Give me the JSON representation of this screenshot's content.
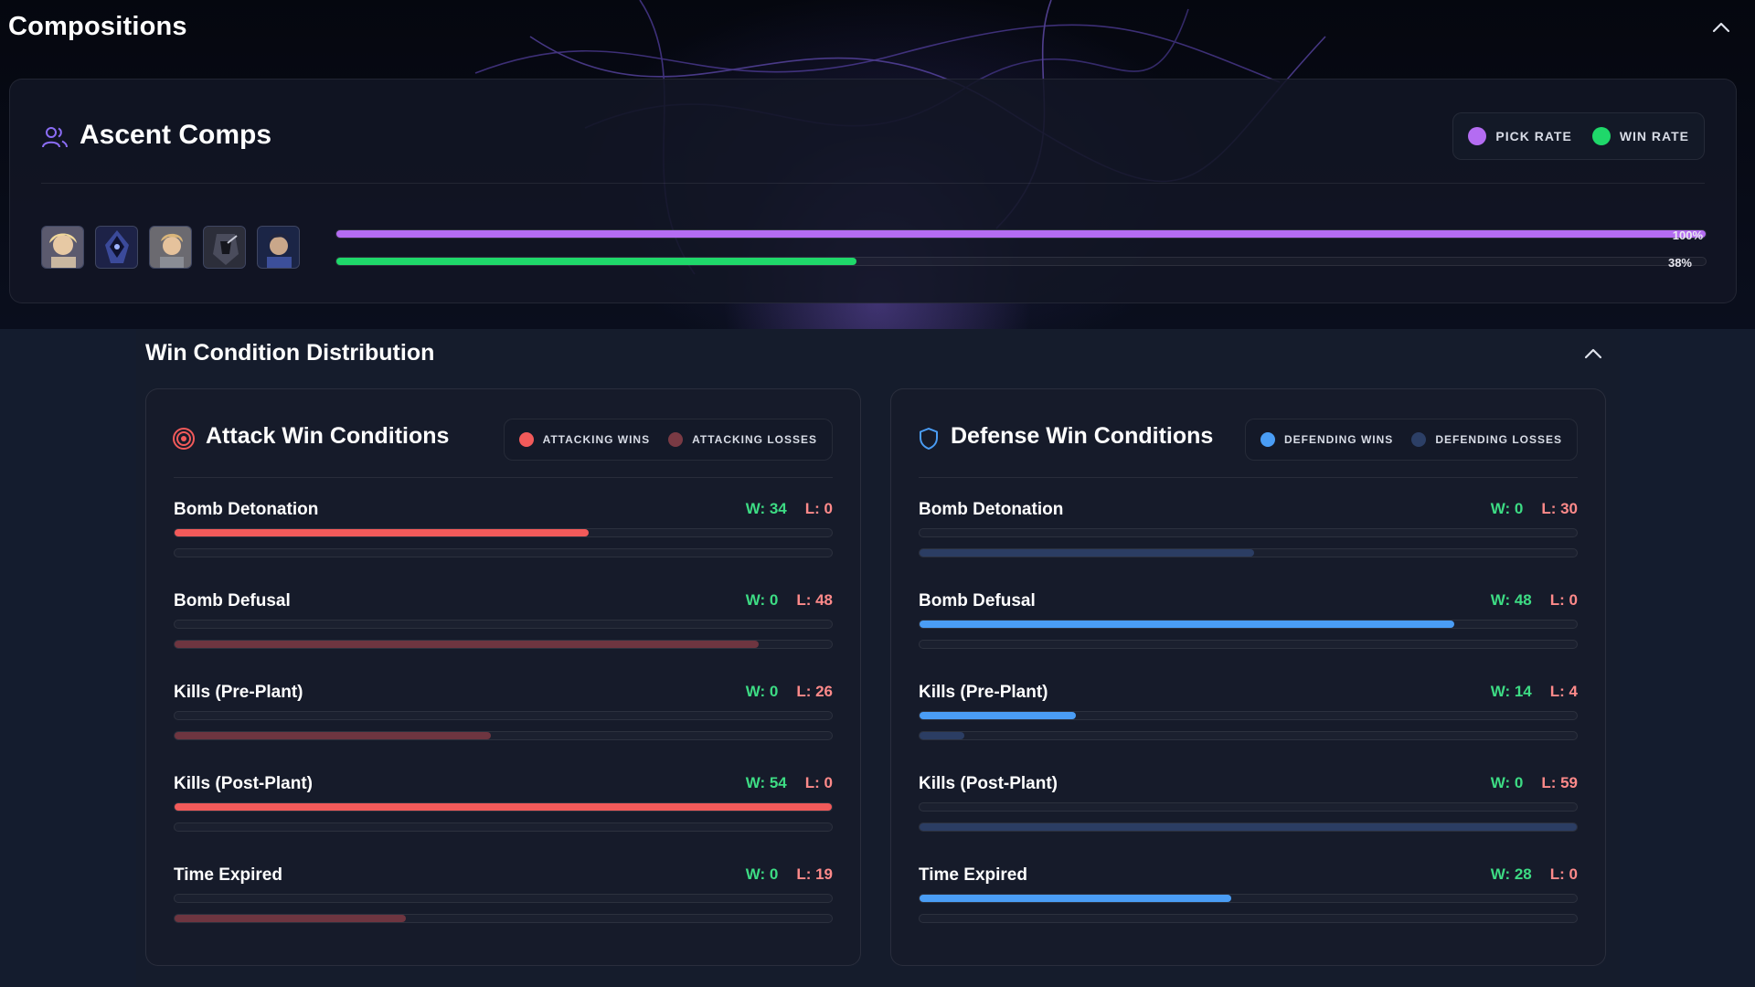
{
  "compositions": {
    "title": "Compositions",
    "card": {
      "title": "Ascent Comps",
      "legend": [
        {
          "label": "PICK RATE",
          "color": "#b46cf2"
        },
        {
          "label": "WIN RATE",
          "color": "#1fd86a"
        }
      ],
      "agents": [
        "agent-portrait-1",
        "agent-portrait-2",
        "agent-portrait-3",
        "agent-portrait-4",
        "agent-portrait-5"
      ],
      "pick_rate": {
        "value": 1.0,
        "label": "100%",
        "color": "#b46cf2"
      },
      "win_rate": {
        "value": 0.38,
        "label": "38%",
        "color": "#1fd86a"
      }
    }
  },
  "win_conditions": {
    "title": "Win Condition Distribution",
    "attack": {
      "title": "Attack Win Conditions",
      "icon": "target-icon",
      "legend": [
        {
          "label": "ATTACKING WINS",
          "color": "#f25a5a"
        },
        {
          "label": "ATTACKING LOSSES",
          "color": "#7a3a44"
        }
      ],
      "win_color": "#f25a5a",
      "loss_color": "#6e3540",
      "max": 54,
      "rows": [
        {
          "label": "Bomb Detonation",
          "w": 34,
          "l": 0,
          "w_text": "W: 34",
          "l_text": "L: 0"
        },
        {
          "label": "Bomb Defusal",
          "w": 0,
          "l": 48,
          "w_text": "W: 0",
          "l_text": "L: 48"
        },
        {
          "label": "Kills (Pre-Plant)",
          "w": 0,
          "l": 26,
          "w_text": "W: 0",
          "l_text": "L: 26"
        },
        {
          "label": "Kills (Post-Plant)",
          "w": 54,
          "l": 0,
          "w_text": "W: 54",
          "l_text": "L: 0"
        },
        {
          "label": "Time Expired",
          "w": 0,
          "l": 19,
          "w_text": "W: 0",
          "l_text": "L: 19"
        }
      ]
    },
    "defense": {
      "title": "Defense Win Conditions",
      "icon": "shield-icon",
      "legend": [
        {
          "label": "DEFENDING WINS",
          "color": "#4a9df5"
        },
        {
          "label": "DEFENDING LOSSES",
          "color": "#2c3f66"
        }
      ],
      "win_color": "#4a9df5",
      "loss_color": "#2b3d63",
      "max": 59,
      "rows": [
        {
          "label": "Bomb Detonation",
          "w": 0,
          "l": 30,
          "w_text": "W: 0",
          "l_text": "L: 30"
        },
        {
          "label": "Bomb Defusal",
          "w": 48,
          "l": 0,
          "w_text": "W: 48",
          "l_text": "L: 0"
        },
        {
          "label": "Kills (Pre-Plant)",
          "w": 14,
          "l": 4,
          "w_text": "W: 14",
          "l_text": "L: 4"
        },
        {
          "label": "Kills (Post-Plant)",
          "w": 0,
          "l": 59,
          "w_text": "W: 0",
          "l_text": "L: 59"
        },
        {
          "label": "Time Expired",
          "w": 28,
          "l": 0,
          "w_text": "W: 28",
          "l_text": "L: 0"
        }
      ]
    }
  }
}
